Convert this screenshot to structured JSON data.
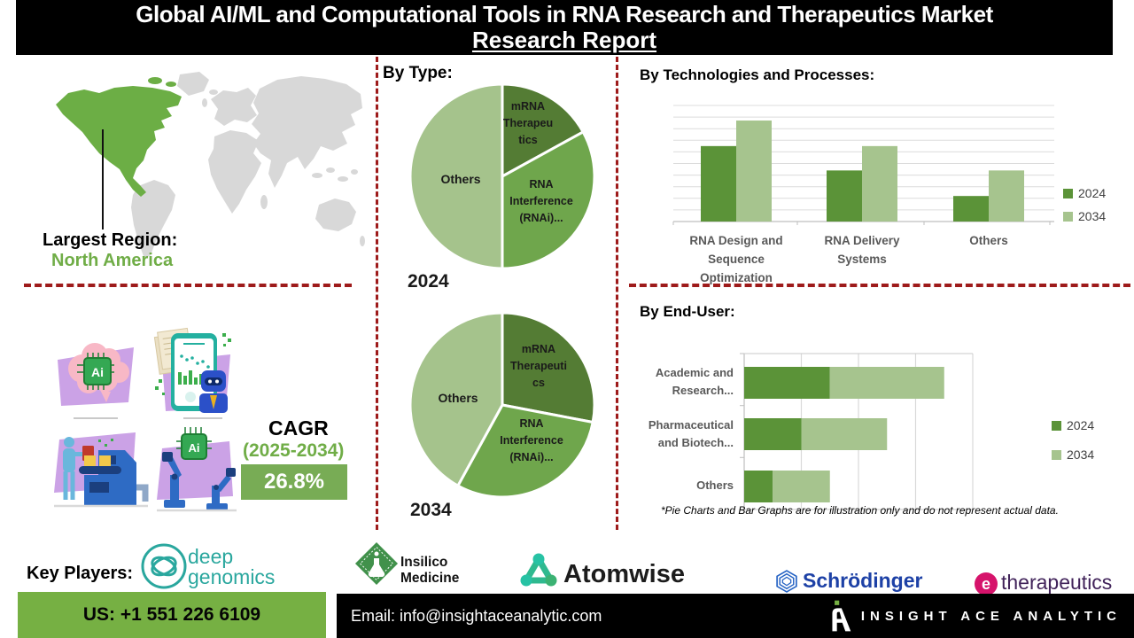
{
  "title": {
    "line1": "Global AI/ML and Computational Tools in RNA Research and Therapeutics Market",
    "line2": "Research Report"
  },
  "headings": {
    "by_type": "By Type:"
  },
  "region": {
    "label": "Largest Region:",
    "value": "North America"
  },
  "cagr": {
    "label": "CAGR",
    "period": "(2025-2034)",
    "value": "26.8%"
  },
  "illustration_chip_label": "Ai",
  "footnote": "*Pie Charts and Bar Graphs are for illustration only and do not represent actual data.",
  "key_players": {
    "label": "Key Players:",
    "deep_genomics": "deep\ngenomics",
    "insilico": "Insilico\nMedicine",
    "atomwise": "Atomwise",
    "schrodinger": "Schrödinger",
    "etherapeutics_mark": "e",
    "etherapeutics": "therapeutics"
  },
  "footer": {
    "phone": "US: +1 551 226 6109",
    "email": "Email: info@insightaceanalytic.com",
    "brand": "INSIGHT ACE ANALYTIC"
  },
  "colors": {
    "accent_green": "#70AD47",
    "pie_dark": "#547C34",
    "pie_mid": "#6FA64C",
    "pie_light": "#A5C38C",
    "bar_dark": "#5B9338",
    "bar_light": "#A6C48E",
    "dashed_red": "#9E1B1B",
    "footer_green": "#76B043",
    "cagr_box_green": "#78AC55",
    "map_green": "#6CAE45",
    "map_gray": "#D8D8D8"
  },
  "chart_data": [
    {
      "id": "pie2024",
      "type": "pie",
      "year_label": "2024",
      "labels": [
        "mRNA Therapeutics",
        "RNA Interference (RNAi)...",
        "Others"
      ],
      "display_labels": [
        "mRNA\nTherapeu\ntics",
        "RNA\nInterference\n(RNAi)...",
        "Others"
      ],
      "values": [
        17,
        33,
        50
      ],
      "colors": [
        "#547C34",
        "#6FA64C",
        "#A5C38C"
      ],
      "note": "illustrative proportions"
    },
    {
      "id": "pie2034",
      "type": "pie",
      "year_label": "2034",
      "labels": [
        "mRNA Therapeutics",
        "RNA Interference (RNAi)...",
        "Others"
      ],
      "display_labels": [
        "mRNA\nTherapeuti\ncs",
        "RNA\nInterference\n(RNAi)...",
        "Others"
      ],
      "values": [
        28,
        30,
        42
      ],
      "colors": [
        "#547C34",
        "#6FA64C",
        "#A5C38C"
      ],
      "note": "illustrative proportions"
    },
    {
      "id": "tech",
      "type": "bar",
      "title": "By Technologies and Processes:",
      "categories": [
        "RNA Design and Sequence Optimization",
        "RNA Delivery Systems",
        "Others"
      ],
      "display_categories": [
        "RNA Design and\nSequence\nOptimization",
        "RNA Delivery\nSystems",
        "Others"
      ],
      "series": [
        {
          "name": "2024",
          "values": [
            6.5,
            4.4,
            2.2
          ]
        },
        {
          "name": "2034",
          "values": [
            8.7,
            6.5,
            4.4
          ]
        }
      ],
      "ylim": [
        0,
        10
      ],
      "grid": true,
      "legend_position": "right",
      "colors": [
        "#5B9338",
        "#A6C48E"
      ],
      "note": "illustrative values, no y-axis labels shown"
    },
    {
      "id": "enduser",
      "type": "bar",
      "orientation": "horizontal",
      "stacked": true,
      "title": "By End-User:",
      "categories": [
        "Academic and Research...",
        "Pharmaceutical and Biotech...",
        "Others"
      ],
      "display_categories": [
        "Academic and\nResearch...",
        "Pharmaceutical\nand Biotech...",
        "Others"
      ],
      "series": [
        {
          "name": "2024",
          "values": [
            1.5,
            1.0,
            0.5
          ]
        },
        {
          "name": "2034",
          "values": [
            2.0,
            1.5,
            1.0
          ]
        }
      ],
      "xlim": [
        0,
        4
      ],
      "grid": true,
      "legend_position": "right",
      "colors": [
        "#5B9338",
        "#A6C48E"
      ],
      "note": "illustrative values, no x-axis labels shown"
    }
  ]
}
